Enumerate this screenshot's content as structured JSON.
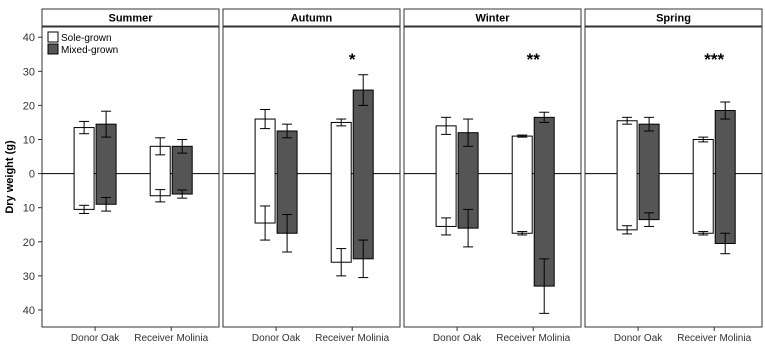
{
  "chart_data": {
    "type": "bar",
    "ylabel": "Dry weight (g)",
    "ylim": [
      -45,
      43
    ],
    "yticks": [
      -40,
      -30,
      -20,
      -10,
      0,
      10,
      20,
      30,
      40
    ],
    "ytick_labels": [
      "40",
      "30",
      "20",
      "10",
      "0",
      "10",
      "20",
      "30",
      "40"
    ],
    "categories": [
      "Donor Oak",
      "Receiver Molinia"
    ],
    "legend": {
      "position": "top-left",
      "items": [
        {
          "name": "Sole-grown",
          "fill": "#ffffff"
        },
        {
          "name": "Mixed-grown",
          "fill": "#555555"
        }
      ]
    },
    "colors": {
      "Sole-grown": "#ffffff",
      "Mixed-grown": "#555555",
      "strip": "#ffffff",
      "line": "#000000"
    },
    "facets": [
      {
        "name": "Summer",
        "significance": "",
        "groups": [
          {
            "category": "Donor Oak",
            "bars": [
              {
                "series": "Sole-grown",
                "upper": 13.5,
                "upper_err": 1.8,
                "lower": -10.5,
                "lower_err": 1.2
              },
              {
                "series": "Mixed-grown",
                "upper": 14.5,
                "upper_err": 3.8,
                "lower": -9.0,
                "lower_err": 2.0
              }
            ]
          },
          {
            "category": "Receiver Molinia",
            "bars": [
              {
                "series": "Sole-grown",
                "upper": 8.0,
                "upper_err": 2.5,
                "lower": -6.5,
                "lower_err": 1.8
              },
              {
                "series": "Mixed-grown",
                "upper": 8.0,
                "upper_err": 2.0,
                "lower": -6.0,
                "lower_err": 1.2
              }
            ]
          }
        ]
      },
      {
        "name": "Autumn",
        "significance": "*",
        "groups": [
          {
            "category": "Donor Oak",
            "bars": [
              {
                "series": "Sole-grown",
                "upper": 16.0,
                "upper_err": 2.8,
                "lower": -14.5,
                "lower_err": 5.0
              },
              {
                "series": "Mixed-grown",
                "upper": 12.5,
                "upper_err": 2.0,
                "lower": -17.5,
                "lower_err": 5.5
              }
            ]
          },
          {
            "category": "Receiver Molinia",
            "bars": [
              {
                "series": "Sole-grown",
                "upper": 15.0,
                "upper_err": 1.0,
                "lower": -26.0,
                "lower_err": 4.0
              },
              {
                "series": "Mixed-grown",
                "upper": 24.5,
                "upper_err": 4.5,
                "lower": -25.0,
                "lower_err": 5.5
              }
            ]
          }
        ]
      },
      {
        "name": "Winter",
        "significance": "**",
        "groups": [
          {
            "category": "Donor Oak",
            "bars": [
              {
                "series": "Sole-grown",
                "upper": 14.0,
                "upper_err": 2.5,
                "lower": -15.5,
                "lower_err": 2.5
              },
              {
                "series": "Mixed-grown",
                "upper": 12.0,
                "upper_err": 4.0,
                "lower": -16.0,
                "lower_err": 5.5
              }
            ]
          },
          {
            "category": "Receiver Molinia",
            "bars": [
              {
                "series": "Sole-grown",
                "upper": 11.0,
                "upper_err": 0.3,
                "lower": -17.5,
                "lower_err": 0.5
              },
              {
                "series": "Mixed-grown",
                "upper": 16.5,
                "upper_err": 1.5,
                "lower": -33.0,
                "lower_err": 8.0
              }
            ]
          }
        ]
      },
      {
        "name": "Spring",
        "significance": "***",
        "groups": [
          {
            "category": "Donor Oak",
            "bars": [
              {
                "series": "Sole-grown",
                "upper": 15.5,
                "upper_err": 1.0,
                "lower": -16.5,
                "lower_err": 1.2
              },
              {
                "series": "Mixed-grown",
                "upper": 14.5,
                "upper_err": 2.0,
                "lower": -13.5,
                "lower_err": 2.0
              }
            ]
          },
          {
            "category": "Receiver Molinia",
            "bars": [
              {
                "series": "Sole-grown",
                "upper": 10.0,
                "upper_err": 0.7,
                "lower": -17.5,
                "lower_err": 0.5
              },
              {
                "series": "Mixed-grown",
                "upper": 18.5,
                "upper_err": 2.5,
                "lower": -20.5,
                "lower_err": 3.0
              }
            ]
          }
        ]
      }
    ]
  }
}
